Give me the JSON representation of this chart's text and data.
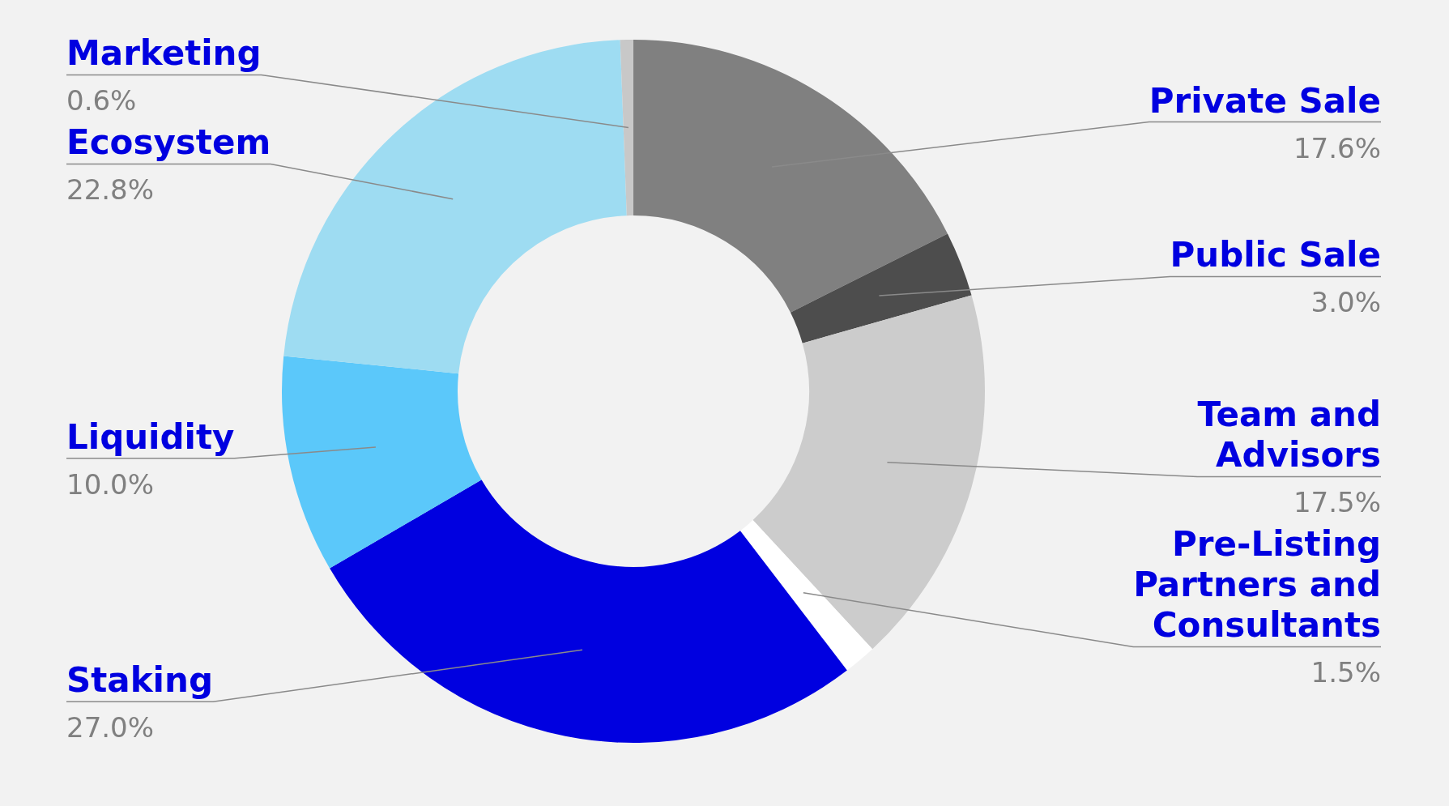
{
  "chart_data": {
    "type": "donut",
    "categories": [
      "Private Sale",
      "Public Sale",
      "Team and Advisors",
      "Pre-Listing Partners and Consultants",
      "Staking",
      "Liquidity",
      "Ecosystem",
      "Marketing"
    ],
    "values": [
      17.6,
      3.0,
      17.5,
      1.5,
      27.0,
      10.0,
      22.8,
      0.6
    ],
    "colors": [
      "#808080",
      "#4d4d4d",
      "#cccccc",
      "#ffffff",
      "#0000e0",
      "#5bc8fa",
      "#9edcf2",
      "#c8c8c8"
    ],
    "value_labels": [
      "17.6%",
      "3.0%",
      "17.5%",
      "1.5%",
      "27.0%",
      "10.0%",
      "22.8%",
      "0.6%"
    ]
  }
}
